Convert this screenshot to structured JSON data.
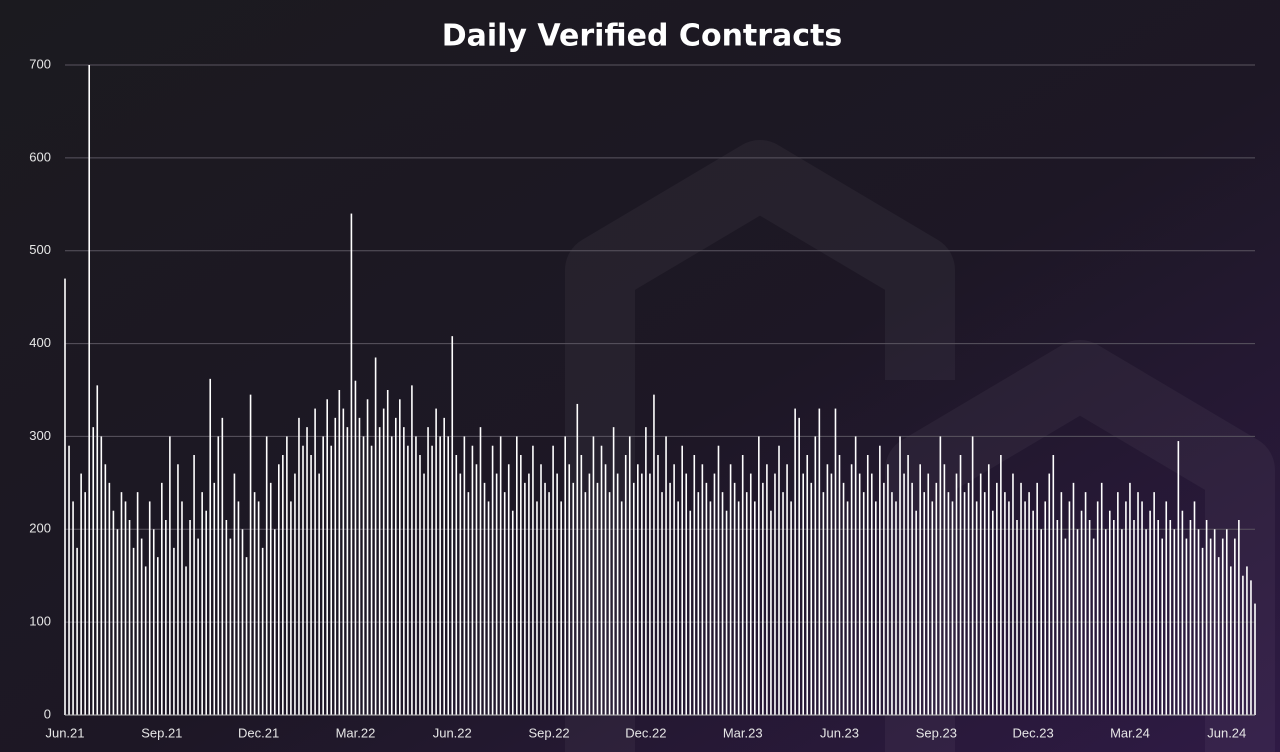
{
  "chart_data": {
    "type": "bar",
    "title": "Daily Verified Contracts",
    "categories": [
      "Jun.21",
      null,
      null,
      null,
      null,
      null,
      null,
      null,
      null,
      null,
      null,
      null,
      null,
      null,
      null,
      null,
      null,
      null,
      null,
      null,
      null,
      null,
      null,
      null,
      "Sep.21",
      null,
      null,
      null,
      null,
      null,
      null,
      null,
      null,
      null,
      null,
      null,
      null,
      null,
      null,
      null,
      null,
      null,
      null,
      null,
      null,
      null,
      null,
      null,
      "Dec.21",
      null,
      null,
      null,
      null,
      null,
      null,
      null,
      null,
      null,
      null,
      null,
      null,
      null,
      null,
      null,
      null,
      null,
      null,
      null,
      null,
      null,
      null,
      null,
      "Mar.22",
      null,
      null,
      null,
      null,
      null,
      null,
      null,
      null,
      null,
      null,
      null,
      null,
      null,
      null,
      null,
      null,
      null,
      null,
      null,
      null,
      null,
      null,
      null,
      "Jun.22",
      null,
      null,
      null,
      null,
      null,
      null,
      null,
      null,
      null,
      null,
      null,
      null,
      null,
      null,
      null,
      null,
      null,
      null,
      null,
      null,
      null,
      null,
      null,
      "Sep.22",
      null,
      null,
      null,
      null,
      null,
      null,
      null,
      null,
      null,
      null,
      null,
      null,
      null,
      null,
      null,
      null,
      null,
      null,
      null,
      null,
      null,
      null,
      null,
      "Dec.22",
      null,
      null,
      null,
      null,
      null,
      null,
      null,
      null,
      null,
      null,
      null,
      null,
      null,
      null,
      null,
      null,
      null,
      null,
      null,
      null,
      null,
      null,
      null,
      "Mar.23",
      null,
      null,
      null,
      null,
      null,
      null,
      null,
      null,
      null,
      null,
      null,
      null,
      null,
      null,
      null,
      null,
      null,
      null,
      null,
      null,
      null,
      null,
      null,
      "Jun.23",
      null,
      null,
      null,
      null,
      null,
      null,
      null,
      null,
      null,
      null,
      null,
      null,
      null,
      null,
      null,
      null,
      null,
      null,
      null,
      null,
      null,
      null,
      null,
      "Sep.23",
      null,
      null,
      null,
      null,
      null,
      null,
      null,
      null,
      null,
      null,
      null,
      null,
      null,
      null,
      null,
      null,
      null,
      null,
      null,
      null,
      null,
      null,
      null,
      "Dec.23",
      null,
      null,
      null,
      null,
      null,
      null,
      null,
      null,
      null,
      null,
      null,
      null,
      null,
      null,
      null,
      null,
      null,
      null,
      null,
      null,
      null,
      null,
      null,
      "Mar.24",
      null,
      null,
      null,
      null,
      null,
      null,
      null,
      null,
      null,
      null,
      null,
      null,
      null,
      null,
      null,
      null,
      null,
      null,
      null,
      null,
      null,
      null,
      null,
      "Jun.24",
      null,
      null,
      null,
      null,
      null,
      null,
      null
    ],
    "values": [
      470,
      290,
      230,
      180,
      260,
      240,
      700,
      310,
      355,
      300,
      270,
      250,
      220,
      200,
      240,
      230,
      210,
      180,
      240,
      190,
      160,
      230,
      200,
      170,
      250,
      210,
      300,
      180,
      270,
      230,
      160,
      210,
      280,
      190,
      240,
      220,
      362,
      250,
      300,
      320,
      210,
      190,
      260,
      230,
      200,
      170,
      345,
      240,
      230,
      180,
      300,
      250,
      200,
      270,
      280,
      300,
      230,
      260,
      320,
      290,
      310,
      280,
      330,
      260,
      300,
      340,
      290,
      320,
      350,
      330,
      310,
      540,
      360,
      320,
      300,
      340,
      290,
      385,
      310,
      330,
      350,
      300,
      320,
      340,
      310,
      290,
      355,
      300,
      280,
      260,
      310,
      290,
      330,
      300,
      320,
      300,
      408,
      280,
      260,
      300,
      240,
      290,
      270,
      310,
      250,
      230,
      290,
      260,
      300,
      240,
      270,
      220,
      300,
      280,
      250,
      260,
      290,
      230,
      270,
      250,
      240,
      290,
      260,
      230,
      300,
      270,
      250,
      335,
      280,
      240,
      260,
      300,
      250,
      290,
      270,
      240,
      310,
      260,
      230,
      280,
      300,
      250,
      270,
      260,
      310,
      260,
      345,
      280,
      240,
      300,
      250,
      270,
      230,
      290,
      260,
      220,
      280,
      240,
      270,
      250,
      230,
      260,
      290,
      240,
      220,
      270,
      250,
      230,
      280,
      240,
      260,
      230,
      300,
      250,
      270,
      220,
      260,
      290,
      240,
      270,
      230,
      330,
      320,
      260,
      280,
      250,
      300,
      330,
      240,
      270,
      260,
      330,
      280,
      250,
      230,
      270,
      300,
      260,
      240,
      280,
      260,
      230,
      290,
      250,
      270,
      240,
      230,
      300,
      260,
      280,
      250,
      220,
      270,
      240,
      260,
      230,
      250,
      300,
      270,
      240,
      230,
      260,
      280,
      240,
      250,
      300,
      230,
      260,
      240,
      270,
      220,
      250,
      280,
      240,
      230,
      260,
      210,
      250,
      230,
      240,
      220,
      250,
      200,
      230,
      260,
      280,
      210,
      240,
      190,
      230,
      250,
      200,
      220,
      240,
      210,
      190,
      230,
      250,
      200,
      220,
      210,
      240,
      200,
      230,
      250,
      210,
      240,
      230,
      200,
      220,
      240,
      210,
      190,
      230,
      210,
      200,
      295,
      220,
      190,
      210,
      230,
      200,
      180,
      210,
      190,
      200,
      170,
      190,
      200,
      160,
      190,
      210,
      150,
      160,
      145,
      120
    ],
    "color": "#ffffff",
    "ylim": [
      0,
      700
    ],
    "yticks": [
      0,
      100,
      200,
      300,
      400,
      500,
      600,
      700
    ],
    "grid": true
  }
}
